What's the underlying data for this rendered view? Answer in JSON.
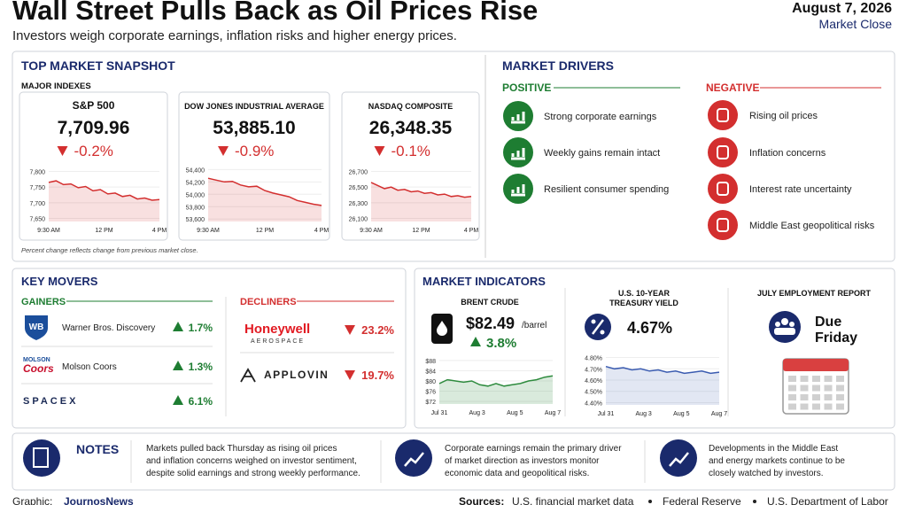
{
  "header": {
    "title": "Wall Street Pulls Back as Oil Prices Rise",
    "subtitle": "Investors weigh corporate earnings, inflation risks and higher energy prices.",
    "date": "August 7, 2026",
    "session": "Market Close"
  },
  "snapshot": {
    "title": "TOP MARKET SNAPSHOT",
    "subtitle": "MAJOR INDEXES",
    "note": "Percent change reflects change from previous market close.",
    "indexes": [
      {
        "name": "S&P 500",
        "value": "7,709.96",
        "change": "-0.2%",
        "chart": {
          "type": "line",
          "categories": [
            "9:30 AM",
            "12 PM",
            "4 PM"
          ],
          "values": [
            7765,
            7770,
            7758,
            7760,
            7748,
            7752,
            7738,
            7742,
            7728,
            7731,
            7720,
            7724,
            7712,
            7715,
            7708,
            7710
          ],
          "ylim": [
            7640,
            7810
          ],
          "yticks": [
            {
              "value": 7800,
              "label": "7,800"
            },
            {
              "value": 7750,
              "label": "7,750"
            },
            {
              "value": 7700,
              "label": "7,700"
            },
            {
              "value": 7650,
              "label": "7,650"
            }
          ],
          "color": "#d32f2f"
        }
      },
      {
        "name": "DOW JONES INDUSTRIAL AVERAGE",
        "value": "53,885.10",
        "change": "-0.9%",
        "chart": {
          "type": "line",
          "categories": [
            "9:30 AM",
            "12 PM",
            "4 PM"
          ],
          "values": [
            54260,
            54230,
            54200,
            54210,
            54150,
            54120,
            54130,
            54060,
            54020,
            53990,
            53960,
            53900,
            53870,
            53840,
            53820
          ],
          "ylim": [
            53560,
            54420
          ],
          "yticks": [
            {
              "value": 54400,
              "label": "54,400"
            },
            {
              "value": 54200,
              "label": "54,200"
            },
            {
              "value": 54000,
              "label": "54,000"
            },
            {
              "value": 53800,
              "label": "53,800"
            },
            {
              "value": 53600,
              "label": "53,600"
            }
          ],
          "color": "#d32f2f"
        }
      },
      {
        "name": "NASDAQ COMPOSITE",
        "value": "26,348.35",
        "change": "-0.1%",
        "chart": {
          "type": "line",
          "categories": [
            "9:30 AM",
            "12 PM",
            "4 PM"
          ],
          "values": [
            26560,
            26520,
            26480,
            26500,
            26460,
            26470,
            26440,
            26450,
            26420,
            26430,
            26400,
            26410,
            26380,
            26390,
            26370,
            26380
          ],
          "ylim": [
            26060,
            26740
          ],
          "yticks": [
            {
              "value": 26700,
              "label": "26,700"
            },
            {
              "value": 26500,
              "label": "26,500"
            },
            {
              "value": 26300,
              "label": "26,300"
            },
            {
              "value": 26100,
              "label": "26,100"
            }
          ],
          "color": "#d32f2f"
        }
      }
    ]
  },
  "drivers": {
    "title": "MARKET DRIVERS",
    "positive": {
      "label": "POSITIVE",
      "items": [
        "Strong corporate earnings",
        "Weekly gains remain intact",
        "Resilient consumer spending"
      ]
    },
    "negative": {
      "label": "NEGATIVE",
      "items": [
        "Rising oil prices",
        "Inflation concerns",
        "Interest rate uncertainty",
        "Middle East geopolitical risks"
      ]
    }
  },
  "movers": {
    "title": "KEY MOVERS",
    "gainers": {
      "label": "GAINERS",
      "items": [
        {
          "logo": "WB",
          "name": "Warner Bros. Discovery",
          "change": "1.7%"
        },
        {
          "logo": "MOLSON",
          "logo_sub": "Coors",
          "name": "Molson Coors",
          "change": "1.3%"
        },
        {
          "logo": "SPACEX",
          "change": "6.1%"
        }
      ]
    },
    "decliners": {
      "label": "DECLINERS",
      "items": [
        {
          "logo": "Honeywell",
          "logo_sub": "AEROSPACE",
          "change": "23.2%"
        },
        {
          "logo": "APPLOVIN",
          "change": "19.7%"
        }
      ]
    }
  },
  "indicators": {
    "title": "MARKET INDICATORS",
    "brent": {
      "label": "BRENT CRUDE",
      "value": "$82.49",
      "unit": "/barrel",
      "change": "3.8%",
      "chart": {
        "type": "line",
        "categories": [
          "Jul 31",
          "Aug 3",
          "Aug 5",
          "Aug 7"
        ],
        "values": [
          79,
          80.5,
          80,
          79.5,
          80,
          78.5,
          78,
          79,
          78,
          78.5,
          79,
          80,
          80.5,
          81.5,
          82
        ],
        "ylim": [
          71,
          89
        ],
        "yticks": [
          {
            "value": 88,
            "label": "$88"
          },
          {
            "value": 84,
            "label": "$84"
          },
          {
            "value": 80,
            "label": "$80"
          },
          {
            "value": 76,
            "label": "$76"
          },
          {
            "value": 72,
            "label": "$72"
          }
        ],
        "color": "#2e8b3e"
      }
    },
    "treasury": {
      "label": [
        "U.S. 10-YEAR",
        "TREASURY YIELD"
      ],
      "value": "4.67%",
      "chart": {
        "type": "line",
        "categories": [
          "Jul 31",
          "Aug 3",
          "Aug 5",
          "Aug 7"
        ],
        "values": [
          4.72,
          4.7,
          4.71,
          4.69,
          4.7,
          4.68,
          4.69,
          4.67,
          4.68,
          4.66,
          4.67,
          4.68,
          4.66,
          4.67
        ],
        "ylim": [
          4.38,
          4.82
        ],
        "yticks": [
          {
            "value": 4.8,
            "label": "4.80%"
          },
          {
            "value": 4.7,
            "label": "4.70%"
          },
          {
            "value": 4.6,
            "label": "4.60%"
          },
          {
            "value": 4.5,
            "label": "4.50%"
          },
          {
            "value": 4.4,
            "label": "4.40%"
          }
        ],
        "color": "#3a5bb0"
      }
    },
    "employment": {
      "label": "JULY EMPLOYMENT REPORT",
      "text": [
        "Due",
        "Friday"
      ]
    }
  },
  "notes": {
    "title": "NOTES",
    "items": [
      [
        "Markets pulled back Thursday as rising oil prices",
        "and inflation concerns weighed on investor sentiment,",
        "despite solid earnings and strong weekly performance."
      ],
      [
        "Corporate earnings remain the primary driver",
        "of market direction as investors monitor",
        "economic data and geopolitical risks."
      ],
      [
        "Developments in the Middle East",
        "and energy markets continue to be",
        "closely watched by investors."
      ]
    ]
  },
  "footer": {
    "graphic_label": "Graphic:",
    "graphic": "JournosNews",
    "sources_label": "Sources:",
    "sources": [
      "U.S. financial market data",
      "Federal Reserve",
      "U.S. Department of Labor"
    ]
  }
}
